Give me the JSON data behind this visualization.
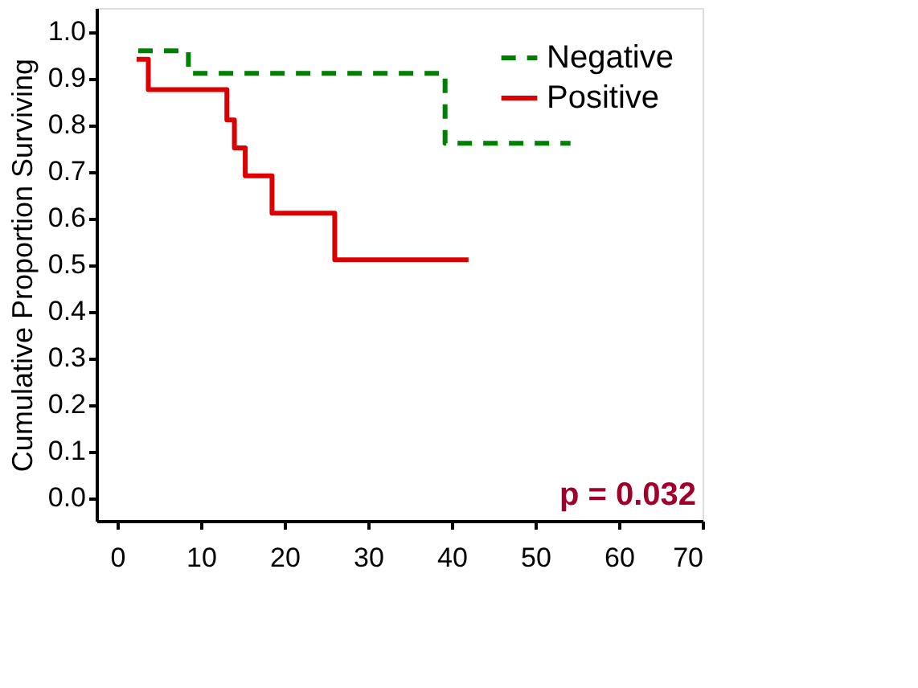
{
  "chart_data": {
    "type": "step",
    "ylabel": "Cumulative Proportion Surviving",
    "xlim": [
      -2.5,
      70
    ],
    "ylim": [
      -0.05,
      1.05
    ],
    "xticks": [
      0,
      10,
      20,
      30,
      40,
      50,
      60,
      70
    ],
    "yticks": [
      {
        "value": 0,
        "label": "0.0"
      },
      0.1,
      0.2,
      0.3,
      0.4,
      0.5,
      0.6,
      0.7,
      0.8,
      0.9,
      {
        "value": 1,
        "label": "1.0"
      }
    ],
    "grid": false,
    "legend": "top right",
    "marker": "none",
    "series": [
      {
        "name": "Negative",
        "color": "#008000",
        "line_style": "dashed",
        "x": [
          2.5,
          8.5,
          39.2,
          54.2
        ],
        "values": [
          0.958,
          0.91,
          0.76,
          0.76
        ]
      },
      {
        "name": "Positive",
        "color": "#dd0000",
        "line_style": "solid",
        "x": [
          2.3,
          3.7,
          13.1,
          14,
          15.3,
          18.5,
          26,
          42
        ],
        "values": [
          0.94,
          0.875,
          0.81,
          0.75,
          0.69,
          0.61,
          0.51,
          0.51
        ]
      }
    ],
    "annotations": [
      "p = 0.032"
    ]
  }
}
